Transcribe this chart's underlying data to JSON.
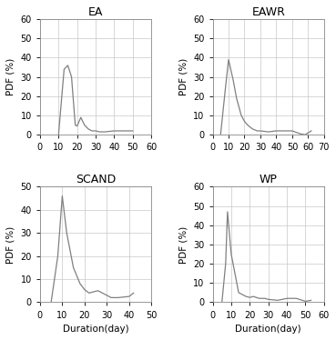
{
  "panels": [
    {
      "title": "EA",
      "xlabel": "",
      "ylabel": "PDF (%)",
      "xlim": [
        0,
        60
      ],
      "ylim": [
        0,
        60
      ],
      "xticks": [
        0,
        10,
        20,
        30,
        40,
        50,
        60
      ],
      "yticks": [
        0,
        10,
        20,
        30,
        40,
        50,
        60
      ],
      "x": [
        10,
        13,
        15,
        17,
        19,
        20,
        22,
        24,
        26,
        28,
        30,
        32,
        35,
        40,
        45,
        50
      ],
      "y": [
        0,
        34,
        36,
        30,
        5,
        4.5,
        9,
        5,
        3,
        2,
        2,
        1.5,
        1.5,
        2,
        2,
        2
      ]
    },
    {
      "title": "EAWR",
      "xlabel": "",
      "ylabel": "PDF (%)",
      "xlim": [
        0,
        70
      ],
      "ylim": [
        0,
        60
      ],
      "xticks": [
        0,
        10,
        20,
        30,
        40,
        50,
        60,
        70
      ],
      "yticks": [
        0,
        10,
        20,
        30,
        40,
        50,
        60
      ],
      "x": [
        5,
        8,
        10,
        13,
        15,
        18,
        20,
        22,
        25,
        28,
        30,
        35,
        40,
        45,
        50,
        55,
        58,
        62
      ],
      "y": [
        0,
        24,
        39,
        28,
        19,
        10,
        7,
        5,
        3,
        2,
        2,
        1.5,
        2,
        2,
        2,
        0.5,
        0,
        2
      ]
    },
    {
      "title": "SCAND",
      "xlabel": "Duration(day)",
      "ylabel": "PDF (%)",
      "xlim": [
        0,
        50
      ],
      "ylim": [
        0,
        50
      ],
      "xticks": [
        0,
        10,
        20,
        30,
        40,
        50
      ],
      "yticks": [
        0,
        10,
        20,
        30,
        40,
        50
      ],
      "x": [
        5,
        8,
        10,
        12,
        15,
        18,
        20,
        22,
        24,
        26,
        28,
        30,
        32,
        35,
        40,
        42
      ],
      "y": [
        0,
        20,
        46,
        30,
        15,
        8,
        5.5,
        4,
        4.5,
        5,
        4,
        3,
        2,
        2,
        2.5,
        4
      ]
    },
    {
      "title": "WP",
      "xlabel": "Duration(day)",
      "ylabel": "PDF (%)",
      "xlim": [
        0,
        60
      ],
      "ylim": [
        0,
        60
      ],
      "xticks": [
        0,
        10,
        20,
        30,
        40,
        50,
        60
      ],
      "yticks": [
        0,
        10,
        20,
        30,
        40,
        50,
        60
      ],
      "x": [
        5,
        7,
        8,
        10,
        14,
        18,
        20,
        22,
        25,
        28,
        30,
        35,
        40,
        45,
        50,
        53
      ],
      "y": [
        0,
        20,
        47,
        25,
        5,
        3,
        2.5,
        3,
        2,
        2,
        1.5,
        1,
        2,
        2,
        0.5,
        1
      ]
    }
  ],
  "line_color": "#808080",
  "grid_color": "#c8c8c8",
  "bg_color": "#ffffff",
  "title_fontsize": 9,
  "label_fontsize": 7.5,
  "tick_fontsize": 7
}
